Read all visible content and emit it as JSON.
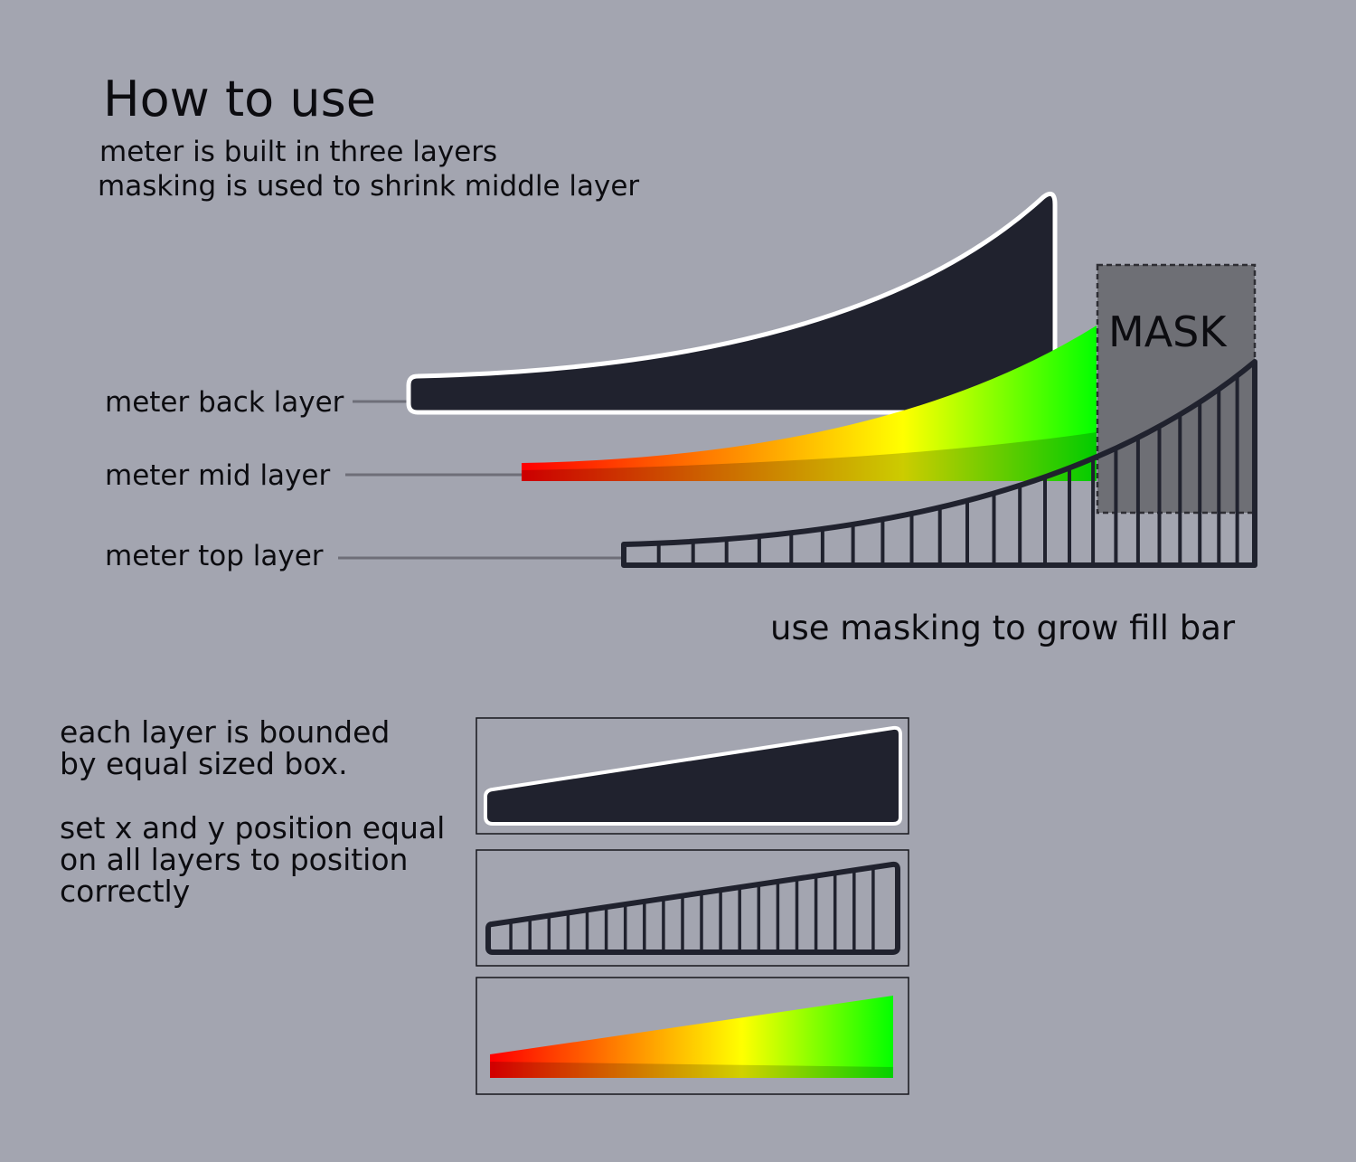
{
  "title": "How to use",
  "intro": {
    "line1": "meter is built in three layers",
    "line2": "masking is used to shrink middle layer"
  },
  "layer_labels": {
    "back": "meter back layer",
    "mid": "meter mid layer",
    "top": "meter top layer"
  },
  "mask_label": "MASK",
  "grow_caption": "use masking to grow fill bar",
  "bounding_note": {
    "line1": "each layer is bounded",
    "line2": "by equal sized box."
  },
  "position_note": {
    "line1": "set x and y position equal",
    "line2": "on all layers to position",
    "line3": "correctly"
  },
  "colors": {
    "background": "#a3a5b0",
    "back_layer": "#20222e",
    "outline": "#ffffff",
    "mask": "#6e6f75",
    "gradient_red": "#ff0000",
    "gradient_yellow": "#ffff00",
    "gradient_green": "#00ff00"
  }
}
